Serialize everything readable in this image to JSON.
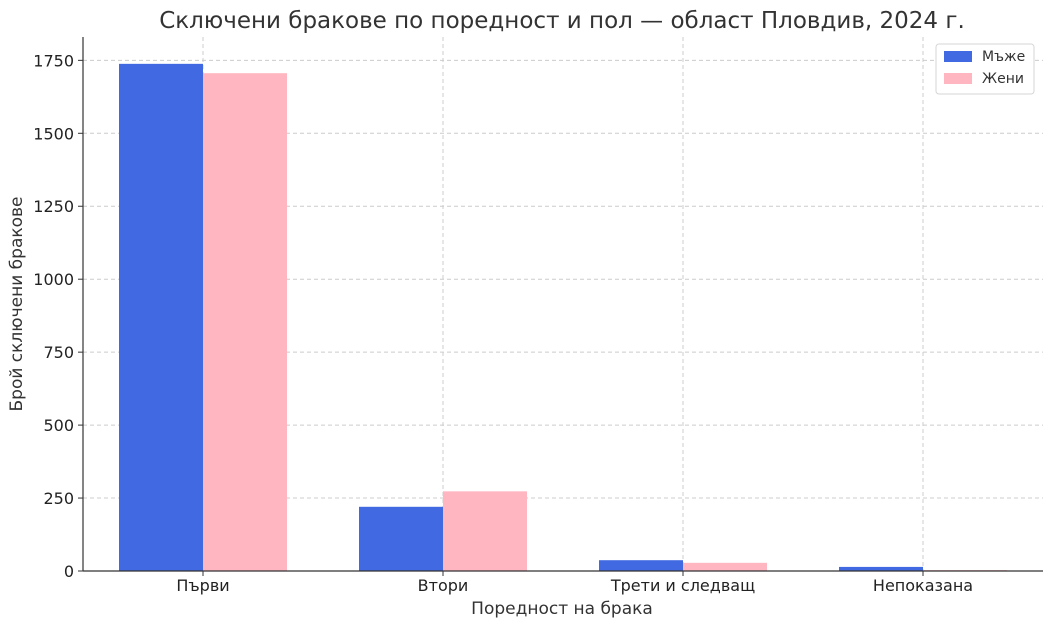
{
  "chart_data": {
    "type": "bar",
    "title": "Сключени бракове по поредност и пол — област Пловдив, 2024 г.",
    "xlabel": "Поредност на брака",
    "ylabel": "Брой сключени бракове",
    "categories": [
      "Първи",
      "Втори",
      "Трети и следващ",
      "Непоказана"
    ],
    "series": [
      {
        "name": "Мъже",
        "color": "#4169e1",
        "values": [
          1738,
          220,
          37,
          14
        ]
      },
      {
        "name": "Жени",
        "color": "#ffb6c1",
        "values": [
          1706,
          273,
          28,
          3
        ]
      }
    ],
    "ylim": [
      0,
      1830
    ],
    "yticks": [
      0,
      250,
      500,
      750,
      1000,
      1250,
      1500,
      1750
    ],
    "grid": true,
    "legend": "top-right"
  }
}
